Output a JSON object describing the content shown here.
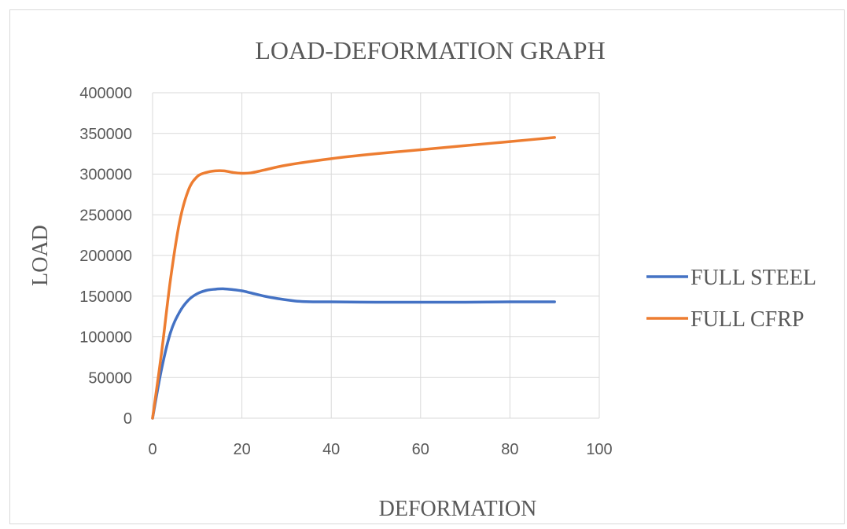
{
  "chart_data": {
    "type": "line",
    "title": "LOAD-DEFORMATION GRAPH",
    "xlabel": "DEFORMATION",
    "ylabel": "LOAD",
    "xlim": [
      0,
      100
    ],
    "ylim": [
      0,
      400000
    ],
    "x_ticks": [
      0,
      20,
      40,
      60,
      80,
      100
    ],
    "y_ticks": [
      0,
      50000,
      100000,
      150000,
      200000,
      250000,
      300000,
      350000,
      400000
    ],
    "grid": true,
    "legend_position": "right",
    "series": [
      {
        "name": "FULL STEEL",
        "color": "#4472C4",
        "points": [
          [
            0,
            0
          ],
          [
            2,
            60000
          ],
          [
            4,
            105000
          ],
          [
            6,
            130000
          ],
          [
            8,
            145000
          ],
          [
            10,
            153000
          ],
          [
            12,
            157000
          ],
          [
            14,
            158500
          ],
          [
            16,
            159000
          ],
          [
            18,
            158000
          ],
          [
            20,
            156500
          ],
          [
            22,
            154000
          ],
          [
            25,
            150000
          ],
          [
            28,
            147000
          ],
          [
            32,
            144000
          ],
          [
            36,
            143000
          ],
          [
            40,
            143000
          ],
          [
            50,
            142500
          ],
          [
            60,
            142500
          ],
          [
            70,
            142500
          ],
          [
            80,
            143000
          ],
          [
            90,
            143000
          ]
        ]
      },
      {
        "name": "FULL CFRP",
        "color": "#ED7D31",
        "points": [
          [
            0,
            0
          ],
          [
            2,
            80000
          ],
          [
            4,
            170000
          ],
          [
            6,
            240000
          ],
          [
            8,
            280000
          ],
          [
            10,
            297000
          ],
          [
            12,
            302000
          ],
          [
            14,
            304000
          ],
          [
            16,
            304000
          ],
          [
            18,
            302000
          ],
          [
            20,
            301000
          ],
          [
            22,
            301500
          ],
          [
            25,
            305000
          ],
          [
            30,
            311000
          ],
          [
            40,
            319000
          ],
          [
            50,
            325000
          ],
          [
            60,
            330000
          ],
          [
            70,
            335000
          ],
          [
            80,
            340000
          ],
          [
            90,
            345000
          ]
        ]
      }
    ]
  }
}
